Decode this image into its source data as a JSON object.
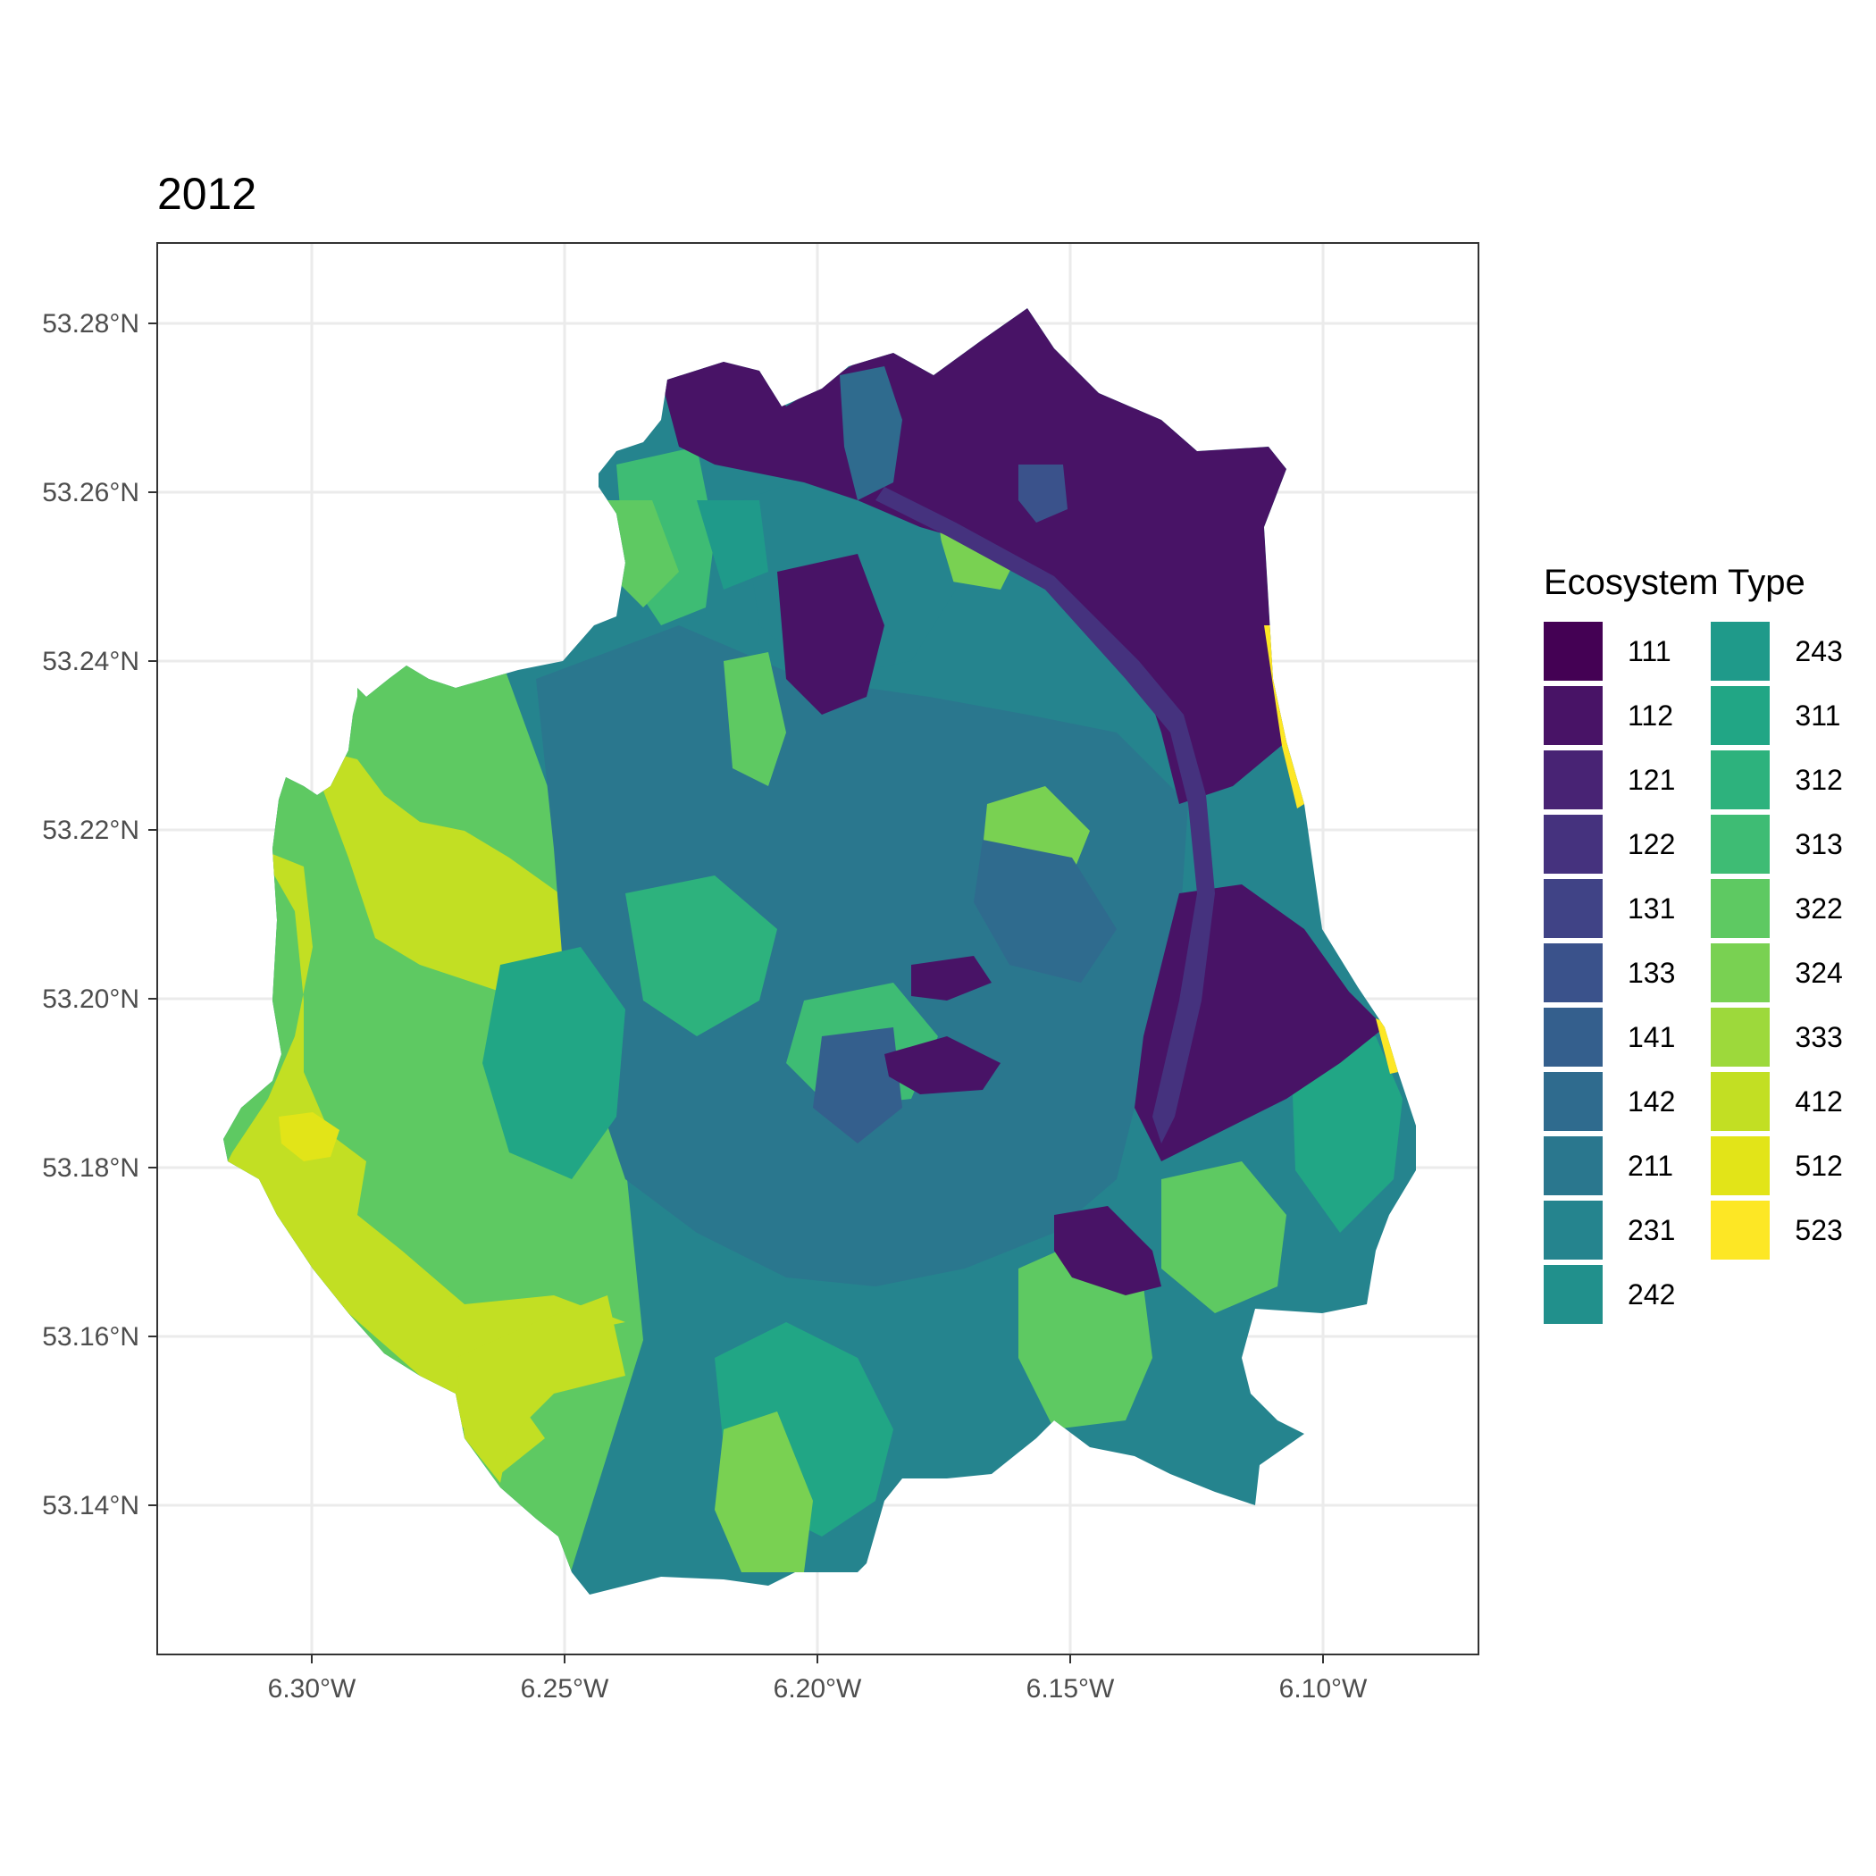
{
  "title": "2012",
  "legend": {
    "title": "Ecosystem Type",
    "items": [
      {
        "code": "111",
        "color": "#440154"
      },
      {
        "code": "112",
        "color": "#481366"
      },
      {
        "code": "121",
        "color": "#482374"
      },
      {
        "code": "122",
        "color": "#45327e"
      },
      {
        "code": "131",
        "color": "#404386"
      },
      {
        "code": "133",
        "color": "#3a528b"
      },
      {
        "code": "141",
        "color": "#345f8d"
      },
      {
        "code": "142",
        "color": "#2f6b8e"
      },
      {
        "code": "211",
        "color": "#2a778e"
      },
      {
        "code": "231",
        "color": "#25848e"
      },
      {
        "code": "242",
        "color": "#21908c"
      },
      {
        "code": "243",
        "color": "#1f9a8a"
      },
      {
        "code": "311",
        "color": "#21a685"
      },
      {
        "code": "312",
        "color": "#2db27d"
      },
      {
        "code": "313",
        "color": "#3ebc74"
      },
      {
        "code": "322",
        "color": "#5ec962"
      },
      {
        "code": "324",
        "color": "#79d152"
      },
      {
        "code": "333",
        "color": "#9dd93b"
      },
      {
        "code": "412",
        "color": "#c2df23"
      },
      {
        "code": "512",
        "color": "#e2e418"
      },
      {
        "code": "523",
        "color": "#fde725"
      }
    ]
  },
  "axes": {
    "x_ticks": [
      "6.30°W",
      "6.25°W",
      "6.20°W",
      "6.15°W",
      "6.10°W"
    ],
    "y_ticks": [
      "53.28°N",
      "53.26°N",
      "53.24°N",
      "53.22°N",
      "53.20°N",
      "53.18°N",
      "53.16°N",
      "53.14°N"
    ]
  }
}
